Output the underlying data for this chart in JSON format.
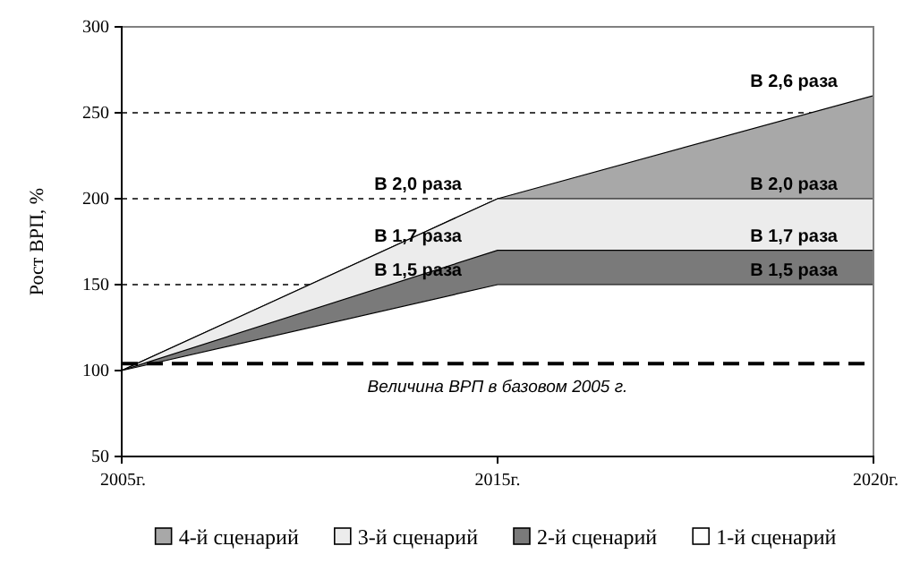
{
  "chart_data": {
    "type": "area",
    "ylabel": "Рост ВРП, %",
    "categories": [
      "2005г.",
      "2015г.",
      "2020г."
    ],
    "series": [
      {
        "name": "4-й сценарий",
        "color": "#a8a8a8",
        "values": [
          100,
          200,
          260
        ]
      },
      {
        "name": "3-й сценарий",
        "color": "#ececec",
        "values": [
          100,
          200,
          200
        ]
      },
      {
        "name": "2-й сценарий",
        "color": "#7a7a7a",
        "values": [
          100,
          170,
          170
        ]
      },
      {
        "name": "1-й сценарий",
        "color": "#ffffff",
        "values": [
          100,
          150,
          150
        ]
      }
    ],
    "ylim": [
      50,
      300
    ],
    "yticks": [
      50,
      100,
      150,
      200,
      250,
      300
    ],
    "grid": "y",
    "legend": "bottom",
    "ref_lines": [
      {
        "axis": "y",
        "value": 104,
        "label": "Величина ВРП в базовом 2005 г.",
        "line_style": "dashed",
        "color": "#000000"
      }
    ],
    "annotations": [
      {
        "text": "В 2,6 раза",
        "x": "2020г.",
        "y": 260
      },
      {
        "text": "В 2,0 раза",
        "x": "2015г.",
        "y": 200
      },
      {
        "text": "В 2,0 раза",
        "x": "2020г.",
        "y": 200
      },
      {
        "text": "В 1,7 раза",
        "x": "2015г.",
        "y": 170
      },
      {
        "text": "В 1,7 раза",
        "x": "2020г.",
        "y": 170
      },
      {
        "text": "В 1,5 раза",
        "x": "2015г.",
        "y": 150
      },
      {
        "text": "В 1,5 раза",
        "x": "2020г.",
        "y": 150
      }
    ]
  }
}
